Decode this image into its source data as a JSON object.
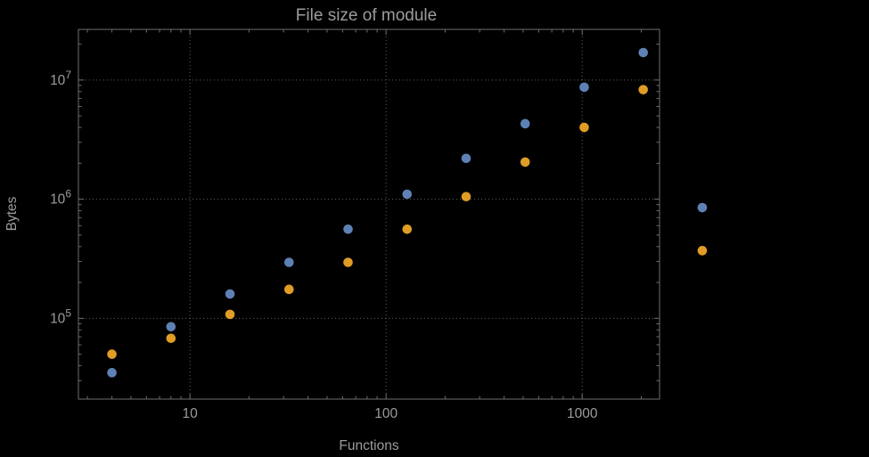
{
  "style": {
    "background": "#000000",
    "text_color": "#9c9c9c",
    "frame_color": "#6e6e6e",
    "grid_color": "#5f5f5f"
  },
  "chart_data": {
    "type": "scatter",
    "title": "File size of module",
    "xlabel": "Functions",
    "ylabel": "Bytes",
    "x_scale": "log",
    "y_scale": "log",
    "grid": true,
    "legend": "none",
    "xlim": [
      2.7,
      2480
    ],
    "ylim": [
      21000,
      26600000
    ],
    "x_ticks": [
      10,
      100,
      1000
    ],
    "x_tick_labels": [
      "10",
      "100",
      "1000"
    ],
    "y_ticks": [
      100000,
      1000000,
      10000000
    ],
    "y_tick_labels": [
      "10^5",
      "10^6",
      "10^7"
    ],
    "x": [
      4,
      8,
      16,
      32,
      64,
      128,
      256,
      512,
      1024,
      2048,
      4096
    ],
    "series": [
      {
        "name": "blue",
        "color": "#5e81b5",
        "values": [
          35000,
          85000,
          160000,
          295000,
          560000,
          1100000,
          2200000,
          4300000,
          8700000,
          17000000,
          850000
        ]
      },
      {
        "name": "orange",
        "color": "#e09c24",
        "values": [
          50000,
          68000,
          108000,
          175000,
          295000,
          560000,
          1050000,
          2050000,
          4000000,
          8300000,
          370000
        ]
      }
    ]
  }
}
